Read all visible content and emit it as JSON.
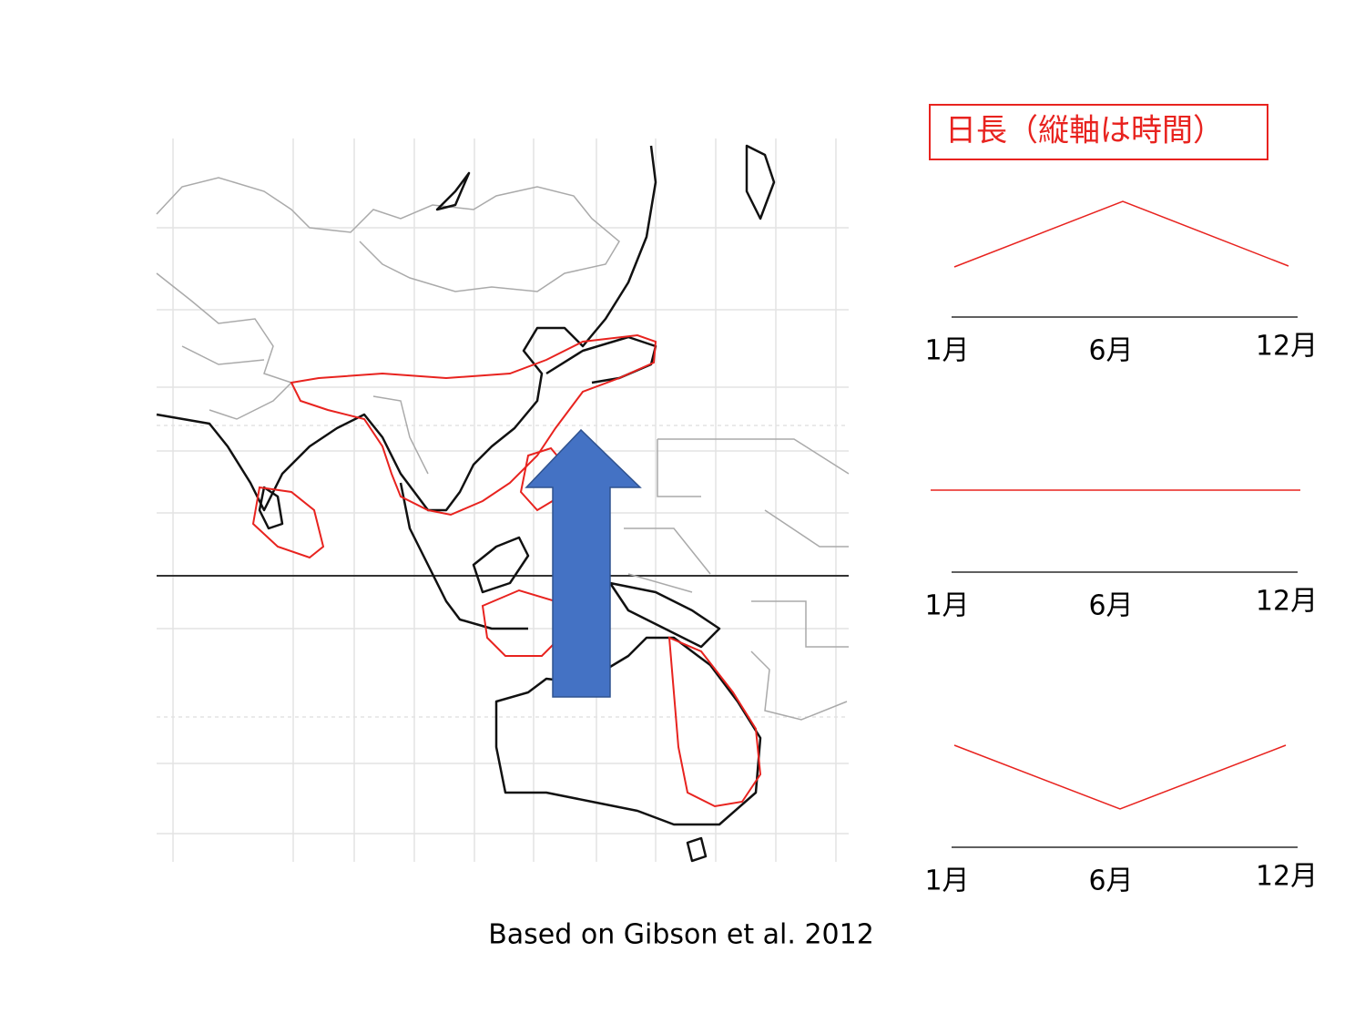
{
  "legend_box": {
    "title": "日長（縦軸は時間）"
  },
  "panels": [
    {
      "ticks": [
        "1月",
        "6月",
        "12月"
      ]
    },
    {
      "ticks": [
        "1月",
        "6月",
        "12月"
      ]
    },
    {
      "ticks": [
        "1月",
        "6月",
        "12月"
      ]
    }
  ],
  "caption": "Based on Gibson et al. 2012"
}
